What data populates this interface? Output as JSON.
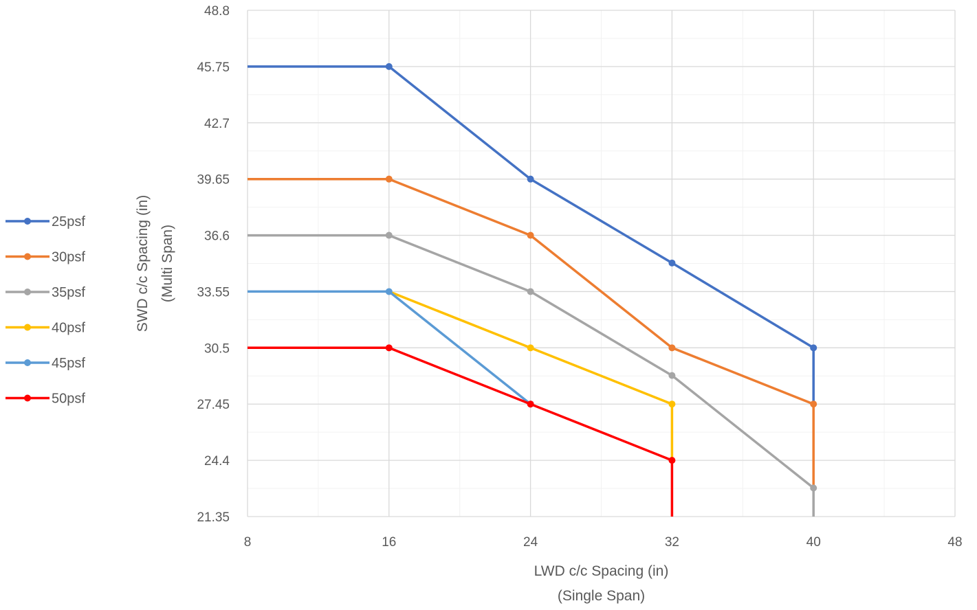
{
  "chart_data": {
    "type": "line",
    "title": "",
    "xlabel": [
      "LWD c/c Spacing (in)",
      "(Single Span)"
    ],
    "ylabel": [
      "SWD c/c Spacing (in)",
      "(Multi Span)"
    ],
    "xlim": [
      8,
      48
    ],
    "ylim": [
      21.35,
      48.8
    ],
    "xticks": [
      8,
      16,
      24,
      32,
      40,
      48
    ],
    "xtick_labels": [
      "8",
      "16",
      "24",
      "32",
      "40",
      "48"
    ],
    "yticks": [
      21.35,
      24.4,
      27.45,
      30.5,
      33.55,
      36.6,
      39.65,
      42.7,
      45.75,
      48.8
    ],
    "ytick_labels": [
      "21.35",
      "24.4",
      "27.45",
      "30.5",
      "33.55",
      "36.6",
      "39.65",
      "42.7",
      "45.75",
      "48.8"
    ],
    "x_minor_step": 4,
    "y_minor_step": 1.525,
    "grid": true,
    "legend_position": "left",
    "series": [
      {
        "name": "25psf",
        "color": "#4472C4",
        "points": [
          [
            8,
            45.75
          ],
          [
            16,
            45.75
          ],
          [
            24,
            39.65
          ],
          [
            32,
            35.1
          ],
          [
            40,
            30.5
          ],
          [
            40,
            27.45
          ]
        ],
        "markers": [
          [
            16,
            45.75
          ],
          [
            24,
            39.65
          ],
          [
            32,
            35.1
          ],
          [
            40,
            30.5
          ]
        ]
      },
      {
        "name": "30psf",
        "color": "#ED7D31",
        "points": [
          [
            8,
            39.65
          ],
          [
            16,
            39.65
          ],
          [
            24,
            36.6
          ],
          [
            32,
            30.5
          ],
          [
            40,
            27.45
          ],
          [
            40,
            22.9
          ]
        ],
        "markers": [
          [
            16,
            39.65
          ],
          [
            24,
            36.6
          ],
          [
            32,
            30.5
          ],
          [
            40,
            27.45
          ]
        ]
      },
      {
        "name": "35psf",
        "color": "#A5A5A5",
        "points": [
          [
            8,
            36.6
          ],
          [
            16,
            36.6
          ],
          [
            24,
            33.55
          ],
          [
            32,
            29.0
          ],
          [
            40,
            22.9
          ],
          [
            40,
            21.35
          ]
        ],
        "markers": [
          [
            16,
            36.6
          ],
          [
            24,
            33.55
          ],
          [
            32,
            29.0
          ],
          [
            40,
            22.9
          ]
        ]
      },
      {
        "name": "40psf",
        "color": "#FFC000",
        "points": [
          [
            16,
            33.55
          ],
          [
            24,
            30.5
          ],
          [
            32,
            27.45
          ],
          [
            32,
            24.4
          ]
        ],
        "markers": [
          [
            24,
            30.5
          ],
          [
            32,
            27.45
          ]
        ]
      },
      {
        "name": "45psf",
        "color": "#5B9BD5",
        "points": [
          [
            8,
            33.55
          ],
          [
            16,
            33.55
          ],
          [
            24,
            27.45
          ]
        ],
        "markers": [
          [
            16,
            33.55
          ],
          [
            24,
            27.45
          ]
        ]
      },
      {
        "name": "50psf",
        "color": "#FF0000",
        "points": [
          [
            8,
            30.5
          ],
          [
            16,
            30.5
          ],
          [
            24,
            27.45
          ],
          [
            32,
            24.4
          ],
          [
            32,
            21.35
          ]
        ],
        "markers": [
          [
            16,
            30.5
          ],
          [
            24,
            27.45
          ],
          [
            32,
            24.4
          ]
        ]
      }
    ]
  }
}
